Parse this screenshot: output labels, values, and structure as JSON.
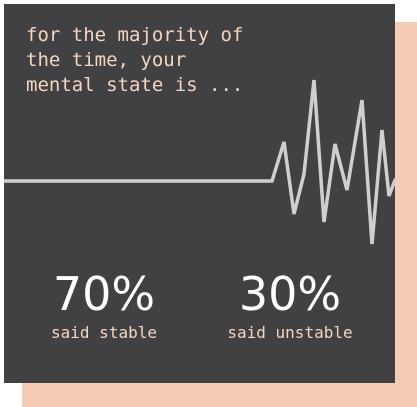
{
  "question": "for the majority of\nthe time, your\nmental state is ...",
  "stats": [
    {
      "value": "70%",
      "label": "said stable"
    },
    {
      "value": "30%",
      "label": "said unstable"
    }
  ],
  "colors": {
    "card": "#414042",
    "shadow": "#f4cdb4",
    "label": "#f4d5c0",
    "value": "#ffffff",
    "wave": "#cfcfcf"
  }
}
